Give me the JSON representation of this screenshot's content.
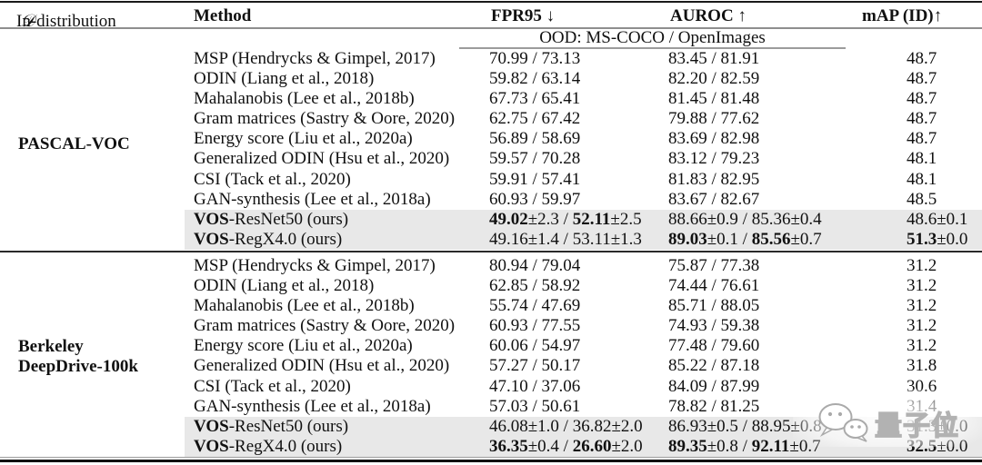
{
  "header": {
    "in_distribution_label": "In-distribution",
    "in_distribution_symbol": "𝒟",
    "method": "Method",
    "fpr95": "FPR95 ↓",
    "auroc": "AUROC ↑",
    "map": "mAP (ID)↑"
  },
  "ood_subheader": "OOD: MS-COCO / OpenImages",
  "sections": [
    {
      "dataset_lines": [
        "PASCAL-VOC"
      ],
      "rows": [
        {
          "method": "MSP (Hendrycks & Gimpel, 2017)",
          "fpr95": "70.99 / 73.13",
          "auroc": "83.45 / 81.91",
          "map": "48.7",
          "highlight": false
        },
        {
          "method": "ODIN (Liang et al., 2018)",
          "fpr95": "59.82 / 63.14",
          "auroc": "82.20 / 82.59",
          "map": "48.7",
          "highlight": false
        },
        {
          "method": "Mahalanobis (Lee et al., 2018b)",
          "fpr95": "67.73 / 65.41",
          "auroc": "81.45 / 81.48",
          "map": "48.7",
          "highlight": false
        },
        {
          "method": "Gram matrices (Sastry & Oore, 2020)",
          "fpr95": "62.75 / 67.42",
          "auroc": "79.88 / 77.62",
          "map": "48.7",
          "highlight": false
        },
        {
          "method": "Energy score (Liu et al., 2020a)",
          "fpr95": "56.89 / 58.69",
          "auroc": "83.69 / 82.98",
          "map": "48.7",
          "highlight": false
        },
        {
          "method": "Generalized ODIN (Hsu et al., 2020)",
          "fpr95": "59.57 / 70.28",
          "auroc": "83.12 / 79.23",
          "map": "48.1",
          "highlight": false
        },
        {
          "method": "CSI (Tack et al., 2020)",
          "fpr95": "59.91 / 57.41",
          "auroc": "81.83 / 82.95",
          "map": "48.1",
          "highlight": false
        },
        {
          "method": "GAN-synthesis (Lee et al., 2018a)",
          "fpr95": "60.93 / 59.97",
          "auroc": "83.67 / 82.67",
          "map": "48.5",
          "highlight": false
        },
        {
          "method": "**VOS**-ResNet50 (ours)",
          "fpr95": "**49.02**±2.3 / **52.11**±2.5",
          "auroc": "88.66±0.9 / 85.36±0.4",
          "map": "48.6±0.1",
          "highlight": true
        },
        {
          "method": "**VOS**-RegX4.0 (ours)",
          "fpr95": "49.16±1.4 / 53.11±1.3",
          "auroc": "**89.03**±0.1 / **85.56**±0.7",
          "map": "**51.3**±0.0",
          "highlight": true
        }
      ]
    },
    {
      "dataset_lines": [
        "Berkeley",
        "DeepDrive-100k"
      ],
      "rows": [
        {
          "method": "MSP (Hendrycks & Gimpel, 2017)",
          "fpr95": "80.94 / 79.04",
          "auroc": "75.87 / 77.38",
          "map": "31.2",
          "highlight": false
        },
        {
          "method": "ODIN (Liang et al., 2018)",
          "fpr95": "62.85 / 58.92",
          "auroc": "74.44 / 76.61",
          "map": "31.2",
          "highlight": false
        },
        {
          "method": "Mahalanobis (Lee et al., 2018b)",
          "fpr95": "55.74 / 47.69",
          "auroc": "85.71 / 88.05",
          "map": "31.2",
          "highlight": false
        },
        {
          "method": "Gram matrices (Sastry & Oore, 2020)",
          "fpr95": "60.93 / 77.55",
          "auroc": "74.93 / 59.38",
          "map": "31.2",
          "highlight": false
        },
        {
          "method": "Energy score (Liu et al., 2020a)",
          "fpr95": "60.06 / 54.97",
          "auroc": "77.48 / 79.60",
          "map": "31.2",
          "highlight": false
        },
        {
          "method": "Generalized ODIN (Hsu et al., 2020)",
          "fpr95": "57.27 / 50.17",
          "auroc": "85.22 / 87.18",
          "map": "31.8",
          "highlight": false
        },
        {
          "method": "CSI (Tack et al., 2020)",
          "fpr95": "47.10 / 37.06",
          "auroc": "84.09 / 87.99",
          "map": "30.6",
          "highlight": false
        },
        {
          "method": "GAN-synthesis (Lee et al., 2018a)",
          "fpr95": "57.03 / 50.61",
          "auroc": "78.82 / 81.25",
          "map": "31.4",
          "highlight": false
        },
        {
          "method": "**VOS**-ResNet50 (ours)",
          "fpr95": "46.08±1.0 / 36.82±2.0",
          "auroc": "86.93±0.5 / 88.95±0.8",
          "map": "31.3±0.0",
          "highlight": true
        },
        {
          "method": "**VOS**-RegX4.0 (ours)",
          "fpr95": "**36.35**±0.4 / **26.60**±2.0",
          "auroc": "**89.35**±0.8 / **92.11**±0.7",
          "map": "**32.5**±0.0",
          "highlight": true
        }
      ]
    }
  ],
  "watermark": {
    "text": "量子位"
  },
  "colors": {
    "highlight_row": "#e8e8e8",
    "rule_dark": "#1a1a1a",
    "rule_gray": "#8e8e8e",
    "text": "#111111",
    "background": "#ffffff"
  }
}
